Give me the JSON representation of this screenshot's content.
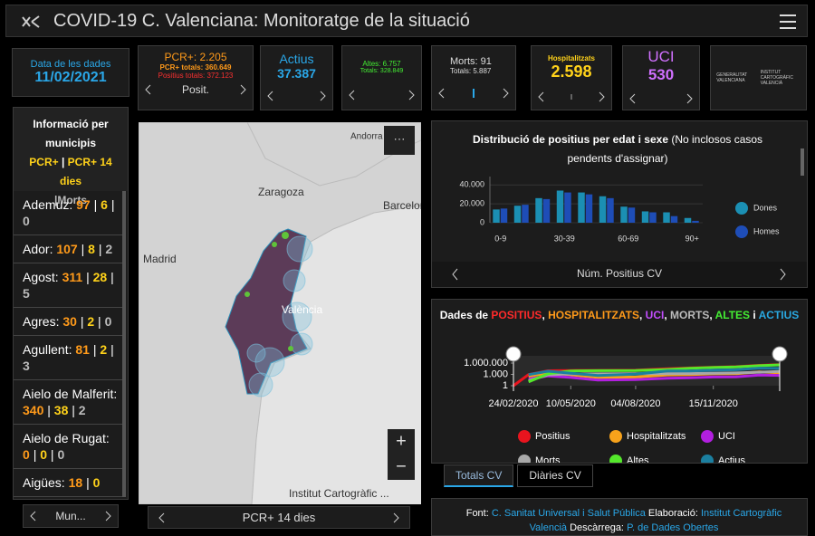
{
  "header": {
    "title": "COVID-19 C. Valenciana: Monitoratge de la situació"
  },
  "cards": {
    "date": {
      "label": "Data de les dades",
      "value": "11/02/2021"
    },
    "pcr": {
      "lines": [
        "PCR+: 2.205",
        "PCR+ totals: 360.649",
        "Positius totals: 372.123"
      ],
      "nav": "Posit."
    },
    "actius": {
      "label": "Actius",
      "value": "37.387"
    },
    "altes": {
      "lines": [
        "Altes: 6.757",
        "Totals: 328.849"
      ]
    },
    "morts": {
      "lines": [
        "Morts: 91",
        "Totals: 5.887"
      ]
    },
    "hosp": {
      "label": "Hospitalitzats",
      "value": "2.598"
    },
    "uci": {
      "label": "UCI",
      "value": "530"
    },
    "logos": [
      "GENERALITAT VALENCIANA",
      "INSTITUT CARTOGRÀFIC VALENCIÀ"
    ]
  },
  "municipis": {
    "title": "Informació per municipis",
    "legend": [
      "PCR+",
      "PCR+ 14 dies",
      "Morts"
    ],
    "separator": "|",
    "rows": [
      {
        "name": "Ademuz:",
        "values": [
          97,
          6,
          0
        ]
      },
      {
        "name": "Ador:",
        "values": [
          107,
          8,
          2
        ]
      },
      {
        "name": "Agost:",
        "values": [
          311,
          28,
          5
        ]
      },
      {
        "name": "Agres:",
        "values": [
          30,
          2,
          0
        ]
      },
      {
        "name": "Agullent:",
        "values": [
          81,
          2,
          3
        ]
      },
      {
        "name": "Aielo de Malferit:",
        "values": [
          340,
          38,
          2
        ]
      },
      {
        "name": "Aielo de Rugat:",
        "values": [
          0,
          0,
          0
        ]
      },
      {
        "name": "Aigües:",
        "values": [
          18,
          0
        ]
      }
    ],
    "footer": "Mun..."
  },
  "map": {
    "labels": [
      "Andorra",
      "Zaragoza",
      "Barcelona",
      "Madrid",
      "València"
    ],
    "menu": "···",
    "zoom_in": "+",
    "zoom_out": "−",
    "attribution": "Institut Cartogràfic ...",
    "footer": "PCR+ 14 dies"
  },
  "chart_data": [
    {
      "type": "bar",
      "title": "Distribució de positius per edat i sexe",
      "subtitle": "(No inclosos casos pendents d'assignar)",
      "categories": [
        "0-9",
        null,
        null,
        "30-39",
        null,
        null,
        "60-69",
        null,
        null,
        "90+"
      ],
      "series": [
        {
          "name": "Dones",
          "color": "#1b8fb3",
          "values": [
            14000,
            18000,
            26000,
            34000,
            32000,
            28000,
            17000,
            12000,
            11000,
            5000
          ]
        },
        {
          "name": "Homes",
          "color": "#1e4db7",
          "values": [
            15000,
            19000,
            25000,
            32000,
            30000,
            26000,
            16000,
            11000,
            7000,
            2000
          ]
        }
      ],
      "ylim": [
        0,
        45000
      ],
      "yticks": [
        0,
        {
          "value": 20000,
          "label": "20.000"
        },
        {
          "value": 40000,
          "label": "40.000"
        }
      ],
      "grid": true,
      "legend": "right",
      "footer": "Núm. Positius CV"
    },
    {
      "type": "line",
      "title_parts": [
        {
          "text": "Dades de ",
          "color": "#ffffff"
        },
        {
          "text": "POSITIUS",
          "color": "#ff2a2a"
        },
        {
          "text": ", ",
          "color": "#ffffff"
        },
        {
          "text": "HOSPITALITZATS",
          "color": "#ff9a1a"
        },
        {
          "text": ", ",
          "color": "#ffffff"
        },
        {
          "text": "UCI",
          "color": "#c34dff"
        },
        {
          "text": ", ",
          "color": "#ffffff"
        },
        {
          "text": "MORTS",
          "color": "#bbbbbb"
        },
        {
          "text": ", ",
          "color": "#ffffff"
        },
        {
          "text": "ALTES",
          "color": "#44ee33"
        },
        {
          "text": " i ",
          "color": "#ffffff"
        },
        {
          "text": "ACTIUS",
          "color": "#29a8e0"
        }
      ],
      "x": [
        "24/02/2020",
        "15/03/2020",
        "10/04/2020",
        "10/05/2020",
        "15/06/2020",
        "04/08/2020",
        "15/09/2020",
        "15/10/2020",
        "15/11/2020",
        "15/12/2020",
        "15/01/2021",
        "11/02/2021"
      ],
      "xlim": [
        "24/02/2020",
        "11/02/2021"
      ],
      "xticks": [
        "24/02/2020",
        "10/05/2020",
        "04/08/2020",
        "15/11/2020"
      ],
      "ylim": [
        1,
        3000000
      ],
      "yticks": [
        1,
        {
          "value": 1000,
          "label": "1.000"
        },
        {
          "value": 1000000,
          "label": "1.000.000"
        }
      ],
      "log_scale": true,
      "series": [
        {
          "name": "Positius",
          "color": "#e8141e",
          "values": [
            1,
            900,
            9000,
            11000,
            11500,
            13000,
            30000,
            50000,
            80000,
            110000,
            250000,
            372123
          ]
        },
        {
          "name": "Hospitalitzats",
          "color": "#f7a21b",
          "values": [
            null,
            300,
            2500,
            800,
            150,
            200,
            700,
            900,
            1400,
            1500,
            4500,
            2598
          ]
        },
        {
          "name": "UCI",
          "color": "#b21fe0",
          "values": [
            null,
            60,
            400,
            150,
            30,
            40,
            100,
            130,
            200,
            230,
            650,
            530
          ]
        },
        {
          "name": "Morts",
          "color": "#a8a8a8",
          "values": [
            null,
            20,
            800,
            1300,
            1400,
            1450,
            1600,
            1700,
            2000,
            2400,
            3800,
            5887
          ]
        },
        {
          "name": "Altes",
          "color": "#54e82b",
          "values": [
            null,
            10,
            1500,
            8000,
            9500,
            10500,
            20000,
            40000,
            65000,
            90000,
            200000,
            328849
          ]
        },
        {
          "name": "Actius",
          "color": "#1b7fa0",
          "values": [
            null,
            850,
            7000,
            2000,
            500,
            1200,
            8000,
            8000,
            13000,
            17000,
            45000,
            37387
          ]
        }
      ],
      "legend": "bottom",
      "tabs": [
        "Totals CV",
        "Diàries CV"
      ]
    }
  ],
  "source": {
    "font_label": "Font:",
    "font": "C. Sanitat Universal i Salut Pública",
    "elab_label": "Elaboració:",
    "elab": "Institut Cartogràfic Valencià",
    "desc_label": "Descàrrega:",
    "desc": "P. de Dades Obertes"
  }
}
